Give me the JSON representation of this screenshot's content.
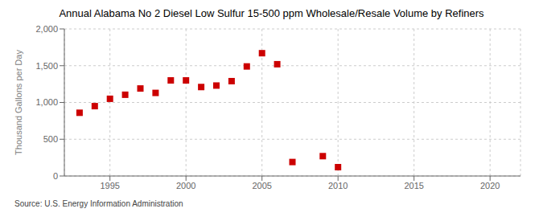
{
  "chart_data": {
    "type": "scatter",
    "title": "Annual Alabama No 2 Diesel Low Sulfur 15-500 ppm Wholesale/Resale Volume by Refiners",
    "ylabel": "Thousand Gallons per Day",
    "source": "Source: U.S. Energy Information Administration",
    "x": [
      1993,
      1994,
      1995,
      1996,
      1997,
      1998,
      1999,
      2000,
      2001,
      2002,
      2003,
      2004,
      2005,
      2006,
      2007,
      2009,
      2010
    ],
    "values": [
      860,
      950,
      1050,
      1105,
      1190,
      1130,
      1300,
      1300,
      1210,
      1230,
      1290,
      1490,
      1670,
      1520,
      190,
      270,
      120
    ],
    "color": "#cc0000",
    "marker": "square",
    "xlim": [
      1992,
      2022
    ],
    "xticks": [
      1995,
      2000,
      2005,
      2010,
      2015,
      2020
    ],
    "ylim": [
      0,
      2000
    ],
    "yticks": [
      0,
      500,
      {
        "value": 1000,
        "label": "1,000"
      },
      {
        "value": 1500,
        "label": "1,500"
      },
      {
        "value": 2000,
        "label": "2,000"
      }
    ],
    "grid": true
  }
}
